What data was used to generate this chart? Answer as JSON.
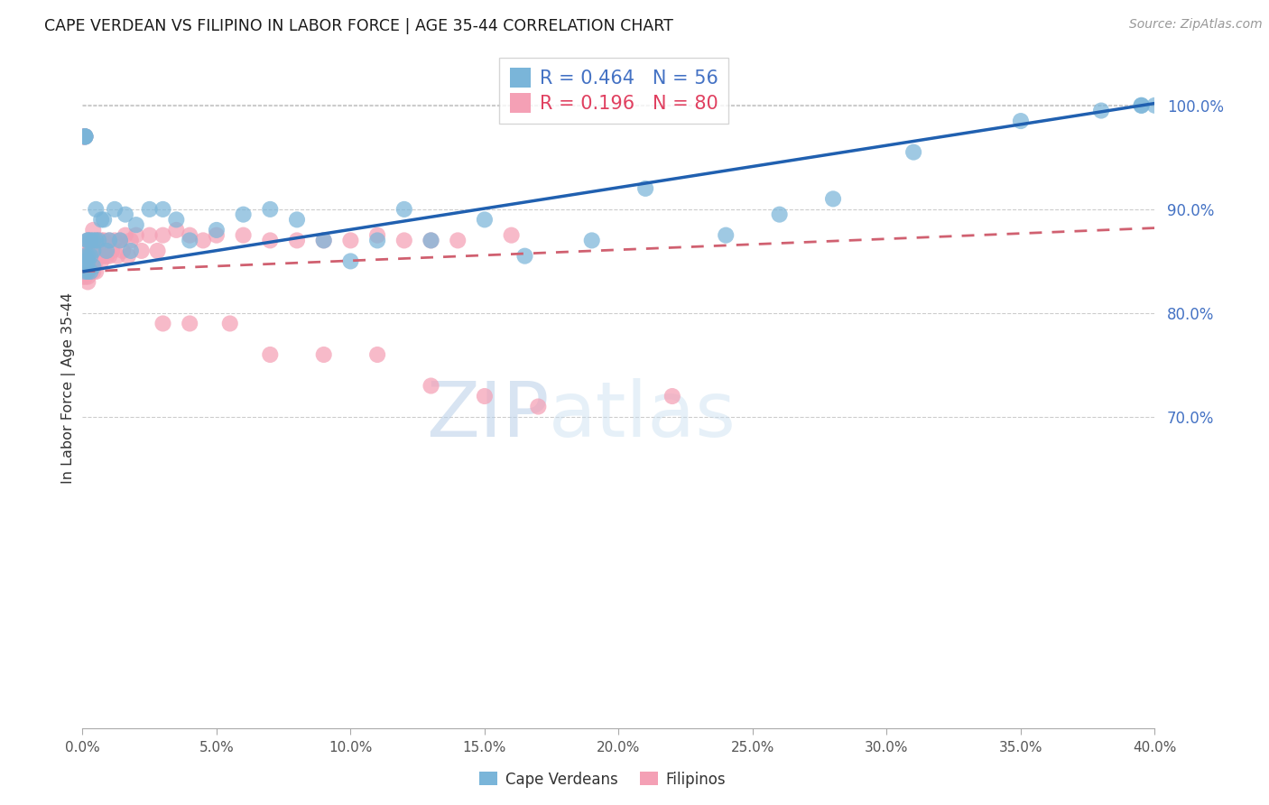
{
  "title": "CAPE VERDEAN VS FILIPINO IN LABOR FORCE | AGE 35-44 CORRELATION CHART",
  "source": "Source: ZipAtlas.com",
  "ylabel": "In Labor Force | Age 35-44",
  "xlim": [
    0.0,
    0.4
  ],
  "ylim": [
    0.4,
    1.055
  ],
  "xtick_vals": [
    0.0,
    0.05,
    0.1,
    0.15,
    0.2,
    0.25,
    0.3,
    0.35,
    0.4
  ],
  "xtick_labels": [
    "0.0%",
    "5.0%",
    "10.0%",
    "15.0%",
    "20.0%",
    "25.0%",
    "30.0%",
    "35.0%",
    "40.0%"
  ],
  "ytick_vals": [
    0.7,
    0.8,
    0.9,
    1.0
  ],
  "ytick_labels": [
    "70.0%",
    "80.0%",
    "90.0%",
    "100.0%"
  ],
  "blue_color": "#7ab5d9",
  "pink_color": "#f4a0b5",
  "blue_line_color": "#2060b0",
  "pink_line_color": "#d06070",
  "right_axis_color": "#4472c4",
  "grid_color": "#cccccc",
  "legend_R_blue": "0.464",
  "legend_N_blue": "56",
  "legend_R_pink": "0.196",
  "legend_N_pink": "80",
  "legend_label_blue": "Cape Verdeans",
  "legend_label_pink": "Filipinos",
  "watermark_zip": "ZIP",
  "watermark_atlas": "atlas",
  "blue_trend": [
    0.84,
    1.002
  ],
  "pink_trend": [
    0.84,
    0.882
  ],
  "cv_x": [
    0.001,
    0.001,
    0.001,
    0.001,
    0.001,
    0.001,
    0.001,
    0.002,
    0.002,
    0.002,
    0.002,
    0.002,
    0.003,
    0.003,
    0.003,
    0.004,
    0.004,
    0.004,
    0.005,
    0.005,
    0.006,
    0.007,
    0.008,
    0.009,
    0.01,
    0.012,
    0.014,
    0.016,
    0.018,
    0.02,
    0.025,
    0.03,
    0.035,
    0.04,
    0.05,
    0.06,
    0.07,
    0.08,
    0.09,
    0.1,
    0.11,
    0.12,
    0.13,
    0.15,
    0.165,
    0.19,
    0.21,
    0.24,
    0.26,
    0.28,
    0.31,
    0.35,
    0.38,
    0.395,
    0.395,
    0.4
  ],
  "cv_y": [
    0.97,
    0.97,
    0.97,
    0.97,
    0.855,
    0.85,
    0.84,
    0.87,
    0.855,
    0.84,
    0.87,
    0.85,
    0.87,
    0.855,
    0.84,
    0.87,
    0.86,
    0.845,
    0.9,
    0.87,
    0.87,
    0.89,
    0.89,
    0.86,
    0.87,
    0.9,
    0.87,
    0.895,
    0.86,
    0.885,
    0.9,
    0.9,
    0.89,
    0.87,
    0.88,
    0.895,
    0.9,
    0.89,
    0.87,
    0.85,
    0.87,
    0.9,
    0.87,
    0.89,
    0.855,
    0.87,
    0.92,
    0.875,
    0.895,
    0.91,
    0.955,
    0.985,
    0.995,
    1.0,
    1.0,
    1.0
  ],
  "fil_x": [
    0.0,
    0.0,
    0.0,
    0.0,
    0.0,
    0.0,
    0.0,
    0.001,
    0.001,
    0.001,
    0.001,
    0.001,
    0.001,
    0.001,
    0.002,
    0.002,
    0.002,
    0.002,
    0.002,
    0.002,
    0.002,
    0.003,
    0.003,
    0.003,
    0.003,
    0.003,
    0.004,
    0.004,
    0.004,
    0.004,
    0.005,
    0.005,
    0.005,
    0.005,
    0.006,
    0.006,
    0.007,
    0.007,
    0.008,
    0.008,
    0.009,
    0.01,
    0.01,
    0.011,
    0.012,
    0.013,
    0.014,
    0.015,
    0.016,
    0.017,
    0.018,
    0.02,
    0.022,
    0.025,
    0.028,
    0.03,
    0.035,
    0.04,
    0.045,
    0.05,
    0.06,
    0.07,
    0.08,
    0.09,
    0.1,
    0.11,
    0.12,
    0.13,
    0.14,
    0.16,
    0.03,
    0.04,
    0.055,
    0.07,
    0.09,
    0.11,
    0.13,
    0.15,
    0.17,
    0.22
  ],
  "fil_y": [
    0.97,
    0.97,
    0.97,
    0.855,
    0.85,
    0.84,
    0.835,
    0.97,
    0.97,
    0.855,
    0.85,
    0.845,
    0.84,
    0.835,
    0.87,
    0.86,
    0.855,
    0.85,
    0.84,
    0.835,
    0.83,
    0.87,
    0.86,
    0.855,
    0.845,
    0.84,
    0.88,
    0.865,
    0.855,
    0.84,
    0.87,
    0.86,
    0.85,
    0.84,
    0.87,
    0.855,
    0.87,
    0.85,
    0.87,
    0.855,
    0.855,
    0.87,
    0.855,
    0.86,
    0.87,
    0.855,
    0.87,
    0.86,
    0.875,
    0.855,
    0.87,
    0.875,
    0.86,
    0.875,
    0.86,
    0.875,
    0.88,
    0.875,
    0.87,
    0.875,
    0.875,
    0.87,
    0.87,
    0.87,
    0.87,
    0.875,
    0.87,
    0.87,
    0.87,
    0.875,
    0.79,
    0.79,
    0.79,
    0.76,
    0.76,
    0.76,
    0.73,
    0.72,
    0.71,
    0.72
  ]
}
